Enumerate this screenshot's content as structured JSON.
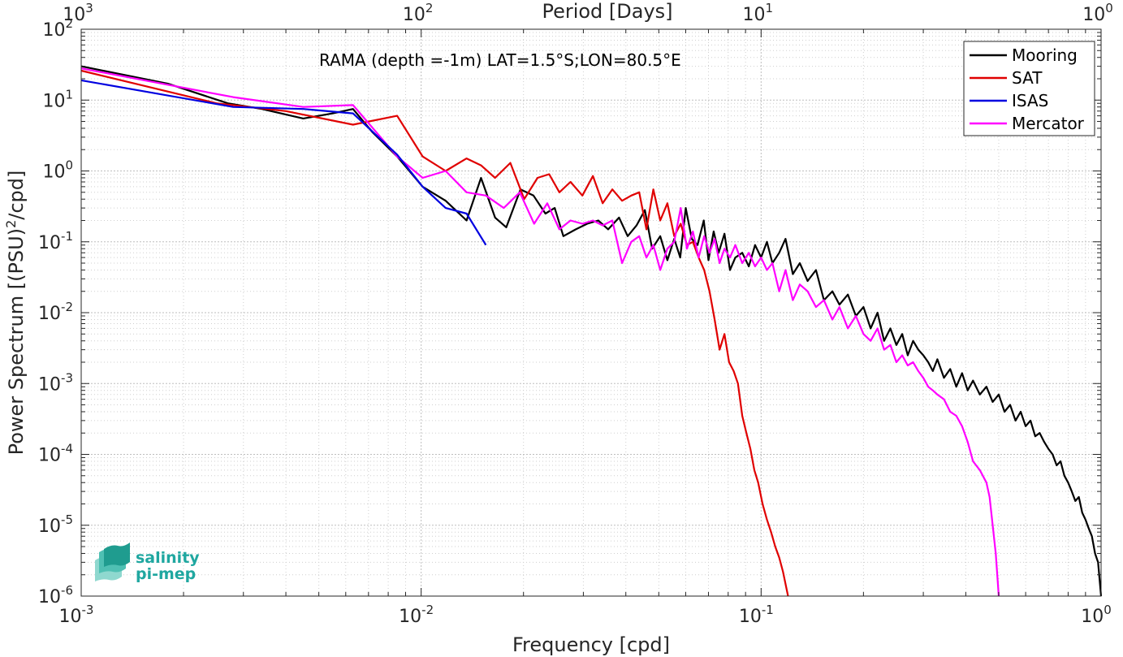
{
  "chart_data": {
    "type": "line",
    "x_scale": "log",
    "y_scale": "log",
    "xlim": [
      0.001,
      1
    ],
    "ylim": [
      1e-06,
      100
    ],
    "grid": true,
    "xlabel": "Frequency [cpd]",
    "ylabel_main": "Power Spectrum [(PSU)",
    "ylabel_sup": "2",
    "ylabel_end": "/cpd]",
    "top_xlabel": "Period [Days]",
    "annotation": "RAMA (depth =-1m) LAT=1.5°S;LON=80.5°E",
    "legend_position": "top-right",
    "x_ticks": [
      {
        "base": "10",
        "exp": "-3",
        "value": 0.001
      },
      {
        "base": "10",
        "exp": "-2",
        "value": 0.01
      },
      {
        "base": "10",
        "exp": "-1",
        "value": 0.1
      },
      {
        "base": "10",
        "exp": "0",
        "value": 1
      }
    ],
    "top_ticks": [
      {
        "base": "10",
        "exp": "3",
        "value": 0.001
      },
      {
        "base": "10",
        "exp": "2",
        "value": 0.01
      },
      {
        "base": "10",
        "exp": "1",
        "value": 0.1
      },
      {
        "base": "10",
        "exp": "0",
        "value": 1
      }
    ],
    "y_ticks": [
      {
        "base": "10",
        "exp": "2",
        "value": 100
      },
      {
        "base": "10",
        "exp": "1",
        "value": 10
      },
      {
        "base": "10",
        "exp": "0",
        "value": 1
      },
      {
        "base": "10",
        "exp": "-1",
        "value": 0.1
      },
      {
        "base": "10",
        "exp": "-2",
        "value": 0.01
      },
      {
        "base": "10",
        "exp": "-3",
        "value": 0.001
      },
      {
        "base": "10",
        "exp": "-4",
        "value": 0.0001
      },
      {
        "base": "10",
        "exp": "-5",
        "value": 1e-05
      },
      {
        "base": "10",
        "exp": "-6",
        "value": 1e-06
      }
    ],
    "series": [
      {
        "name": "Mooring",
        "color": "#000000",
        "x": [
          0.001,
          0.0018,
          0.0027,
          0.0034,
          0.0045,
          0.0055,
          0.0063,
          0.0072,
          0.0085,
          0.0101,
          0.0118,
          0.0136,
          0.015,
          0.0165,
          0.0178,
          0.0196,
          0.0214,
          0.0232,
          0.0247,
          0.0262,
          0.0285,
          0.0308,
          0.0332,
          0.0355,
          0.0382,
          0.0405,
          0.043,
          0.0455,
          0.0478,
          0.0505,
          0.053,
          0.0555,
          0.0578,
          0.06,
          0.0625,
          0.065,
          0.0678,
          0.07,
          0.0725,
          0.075,
          0.078,
          0.081,
          0.084,
          0.088,
          0.092,
          0.096,
          0.1,
          0.104,
          0.108,
          0.113,
          0.118,
          0.124,
          0.13,
          0.137,
          0.145,
          0.153,
          0.162,
          0.17,
          0.18,
          0.19,
          0.2,
          0.21,
          0.22,
          0.23,
          0.24,
          0.25,
          0.26,
          0.27,
          0.28,
          0.29,
          0.3,
          0.31,
          0.32,
          0.33,
          0.345,
          0.36,
          0.375,
          0.39,
          0.405,
          0.42,
          0.44,
          0.46,
          0.48,
          0.5,
          0.52,
          0.54,
          0.56,
          0.58,
          0.6,
          0.62,
          0.64,
          0.66,
          0.68,
          0.7,
          0.72,
          0.74,
          0.76,
          0.78,
          0.8,
          0.82,
          0.84,
          0.86,
          0.88,
          0.9,
          0.92,
          0.94,
          0.96,
          0.98,
          1.0
        ],
        "y": [
          30,
          17,
          9,
          7.5,
          5.5,
          6.5,
          7.5,
          3.5,
          1.6,
          0.6,
          0.38,
          0.2,
          0.8,
          0.22,
          0.16,
          0.55,
          0.45,
          0.25,
          0.3,
          0.12,
          0.15,
          0.18,
          0.2,
          0.15,
          0.22,
          0.12,
          0.17,
          0.28,
          0.08,
          0.12,
          0.055,
          0.11,
          0.06,
          0.3,
          0.11,
          0.09,
          0.2,
          0.055,
          0.14,
          0.07,
          0.13,
          0.04,
          0.06,
          0.07,
          0.045,
          0.09,
          0.06,
          0.1,
          0.05,
          0.07,
          0.11,
          0.035,
          0.05,
          0.028,
          0.04,
          0.015,
          0.02,
          0.013,
          0.018,
          0.009,
          0.012,
          0.006,
          0.01,
          0.004,
          0.006,
          0.0035,
          0.005,
          0.0025,
          0.004,
          0.003,
          0.0025,
          0.002,
          0.0015,
          0.0022,
          0.0012,
          0.0016,
          0.0009,
          0.0014,
          0.0008,
          0.0011,
          0.0007,
          0.0009,
          0.00055,
          0.0007,
          0.0004,
          0.0005,
          0.0003,
          0.0004,
          0.00025,
          0.0003,
          0.00018,
          0.0002,
          0.00015,
          0.00012,
          0.0001,
          7e-05,
          8e-05,
          5e-05,
          4e-05,
          3e-05,
          2.2e-05,
          2.5e-05,
          1.5e-05,
          1.2e-05,
          9e-06,
          7e-06,
          4e-06,
          3e-06,
          1e-06
        ]
      },
      {
        "name": "SAT",
        "color": "#e00000",
        "x": [
          0.001,
          0.0025,
          0.004,
          0.0063,
          0.0085,
          0.0101,
          0.0118,
          0.0136,
          0.015,
          0.0165,
          0.0183,
          0.0201,
          0.022,
          0.0238,
          0.0255,
          0.0275,
          0.0298,
          0.032,
          0.0342,
          0.0365,
          0.039,
          0.0415,
          0.0438,
          0.046,
          0.0482,
          0.0505,
          0.053,
          0.0555,
          0.058,
          0.0605,
          0.063,
          0.0655,
          0.068,
          0.0705,
          0.073,
          0.0755,
          0.078,
          0.0805,
          0.083,
          0.0855,
          0.088,
          0.0905,
          0.093,
          0.0955,
          0.098,
          0.101,
          0.104,
          0.107,
          0.11,
          0.113,
          0.116,
          0.12
        ],
        "y": [
          26,
          9,
          7,
          4.5,
          6,
          1.6,
          1.0,
          1.5,
          1.2,
          0.8,
          1.3,
          0.4,
          0.8,
          0.9,
          0.5,
          0.7,
          0.45,
          0.85,
          0.35,
          0.55,
          0.38,
          0.45,
          0.5,
          0.15,
          0.55,
          0.2,
          0.35,
          0.12,
          0.18,
          0.09,
          0.1,
          0.06,
          0.04,
          0.02,
          0.008,
          0.003,
          0.005,
          0.002,
          0.0015,
          0.001,
          0.00035,
          0.0002,
          0.00012,
          6e-05,
          4e-05,
          2e-05,
          1.2e-05,
          8e-06,
          5e-06,
          3.5e-06,
          2.2e-06,
          1e-06
        ]
      },
      {
        "name": "ISAS",
        "color": "#0000e0",
        "x": [
          0.001,
          0.0028,
          0.0045,
          0.0063,
          0.0085,
          0.0101,
          0.0118,
          0.0136,
          0.0155
        ],
        "y": [
          19,
          8,
          7.5,
          6.5,
          1.7,
          0.6,
          0.3,
          0.25,
          0.09
        ]
      },
      {
        "name": "Mercator",
        "color": "#ff00ff",
        "x": [
          0.001,
          0.0028,
          0.0045,
          0.0063,
          0.0085,
          0.0101,
          0.0118,
          0.0136,
          0.0155,
          0.0175,
          0.0195,
          0.0215,
          0.0235,
          0.0255,
          0.0275,
          0.0298,
          0.032,
          0.0342,
          0.0365,
          0.039,
          0.0415,
          0.0438,
          0.046,
          0.0482,
          0.0505,
          0.053,
          0.0555,
          0.058,
          0.0605,
          0.063,
          0.0655,
          0.068,
          0.0705,
          0.073,
          0.0755,
          0.078,
          0.081,
          0.084,
          0.088,
          0.092,
          0.096,
          0.1,
          0.104,
          0.108,
          0.113,
          0.118,
          0.124,
          0.13,
          0.137,
          0.145,
          0.153,
          0.162,
          0.17,
          0.18,
          0.19,
          0.2,
          0.21,
          0.22,
          0.23,
          0.24,
          0.25,
          0.26,
          0.27,
          0.28,
          0.29,
          0.3,
          0.31,
          0.32,
          0.33,
          0.345,
          0.36,
          0.375,
          0.39,
          0.405,
          0.42,
          0.44,
          0.46,
          0.47,
          0.48,
          0.49,
          0.5
        ],
        "y": [
          28,
          11,
          8,
          8.5,
          1.6,
          0.8,
          1.0,
          0.5,
          0.45,
          0.3,
          0.5,
          0.18,
          0.35,
          0.15,
          0.2,
          0.18,
          0.2,
          0.17,
          0.2,
          0.05,
          0.1,
          0.12,
          0.06,
          0.09,
          0.04,
          0.08,
          0.1,
          0.3,
          0.08,
          0.14,
          0.06,
          0.12,
          0.07,
          0.11,
          0.05,
          0.08,
          0.06,
          0.09,
          0.05,
          0.07,
          0.045,
          0.06,
          0.04,
          0.05,
          0.02,
          0.04,
          0.015,
          0.025,
          0.02,
          0.012,
          0.015,
          0.008,
          0.012,
          0.006,
          0.009,
          0.005,
          0.004,
          0.006,
          0.003,
          0.0035,
          0.002,
          0.0025,
          0.0018,
          0.002,
          0.0015,
          0.0012,
          0.0009,
          0.0008,
          0.0007,
          0.0006,
          0.0004,
          0.00035,
          0.00025,
          0.00015,
          8e-05,
          6e-05,
          4e-05,
          2.5e-05,
          1e-05,
          4e-06,
          1e-06
        ]
      }
    ]
  },
  "logo": {
    "line1": "salinity",
    "line2": "pi-mep",
    "color": "#1fa7a0"
  }
}
